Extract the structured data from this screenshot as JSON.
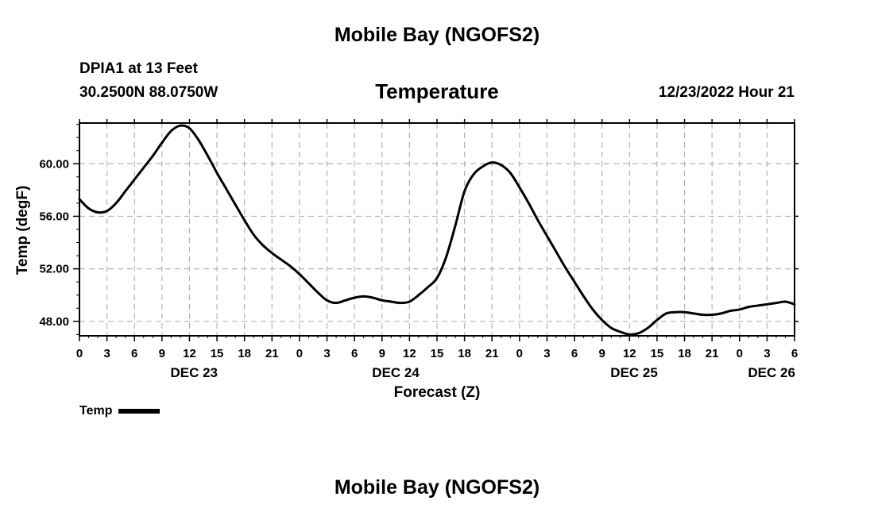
{
  "header": {
    "title": "Mobile Bay (NGOFS2)",
    "station": "DPIA1 at 13 Feet",
    "coords": "30.2500N  88.0750W",
    "plot_title": "Temperature",
    "run_time": "12/23/2022 Hour 21"
  },
  "footer": {
    "title": "Mobile Bay (NGOFS2)"
  },
  "legend": {
    "label": "Temp",
    "color": "#000000"
  },
  "colors": {
    "line": "#000000",
    "grid": "#b4b4b4",
    "frame": "#000000"
  },
  "chart_data": {
    "type": "line",
    "title": "Temperature",
    "xlabel": "Forecast (Z)",
    "ylabel": "Temp (degF)",
    "x_unit": "hours from Dec 23 00Z",
    "xlim": [
      0,
      78
    ],
    "ylim": [
      46.9,
      63.1
    ],
    "y_ticks": [
      48,
      52,
      56,
      60
    ],
    "y_tick_labels": [
      "48.00",
      "52.00",
      "56.00",
      "60.00"
    ],
    "x_ticks": [
      0,
      3,
      6,
      9,
      12,
      15,
      18,
      21,
      24,
      27,
      30,
      33,
      36,
      39,
      42,
      45,
      48,
      51,
      54,
      57,
      60,
      63,
      66,
      69,
      72,
      75,
      78
    ],
    "x_tick_labels": [
      "0",
      "3",
      "6",
      "9",
      "12",
      "15",
      "18",
      "21",
      "0",
      "3",
      "6",
      "9",
      "12",
      "15",
      "18",
      "21",
      "0",
      "3",
      "6",
      "9",
      "12",
      "15",
      "18",
      "21",
      "0",
      "3",
      "6"
    ],
    "date_labels": [
      {
        "x": 12.5,
        "label": "DEC 23"
      },
      {
        "x": 34.5,
        "label": "DEC 24"
      },
      {
        "x": 60.5,
        "label": "DEC 25"
      },
      {
        "x": 75.5,
        "label": "DEC 26"
      }
    ],
    "grid": true,
    "series": [
      {
        "name": "Temp",
        "x": [
          0,
          1,
          2,
          3,
          4,
          5,
          6,
          7,
          8,
          9,
          10,
          11,
          12,
          13,
          14,
          15,
          16,
          17,
          18,
          19,
          20,
          21,
          22,
          23,
          24,
          25,
          26,
          27,
          28,
          29,
          30,
          31,
          32,
          33,
          34,
          35,
          36,
          37,
          38,
          39,
          40,
          41,
          42,
          43,
          44,
          45,
          46,
          47,
          48,
          49,
          50,
          51,
          52,
          53,
          54,
          55,
          56,
          57,
          58,
          59,
          60,
          61,
          62,
          63,
          64,
          65,
          66,
          67,
          68,
          69,
          70,
          71,
          72,
          73,
          74,
          75,
          76,
          77,
          78
        ],
        "values": [
          57.3,
          56.6,
          56.3,
          56.4,
          57.0,
          57.9,
          58.8,
          59.7,
          60.6,
          61.6,
          62.5,
          62.9,
          62.7,
          61.8,
          60.6,
          59.3,
          58.1,
          56.9,
          55.7,
          54.6,
          53.8,
          53.2,
          52.7,
          52.2,
          51.6,
          50.9,
          50.2,
          49.6,
          49.4,
          49.6,
          49.8,
          49.9,
          49.8,
          49.6,
          49.5,
          49.4,
          49.5,
          50.0,
          50.6,
          51.3,
          52.9,
          55.3,
          57.9,
          59.2,
          59.8,
          60.1,
          59.9,
          59.3,
          58.2,
          57.0,
          55.7,
          54.5,
          53.3,
          52.1,
          51.0,
          49.9,
          48.9,
          48.1,
          47.5,
          47.2,
          47.0,
          47.1,
          47.5,
          48.1,
          48.6,
          48.7,
          48.7,
          48.6,
          48.5,
          48.5,
          48.6,
          48.8,
          48.9,
          49.1,
          49.2,
          49.3,
          49.4,
          49.5,
          49.3
        ]
      }
    ]
  }
}
